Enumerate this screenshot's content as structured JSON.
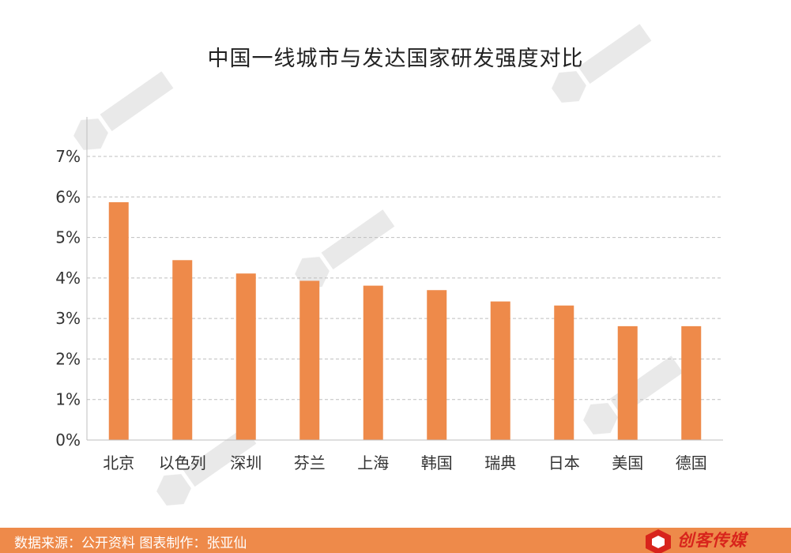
{
  "chart_data": {
    "type": "bar",
    "title": "中国一线城市与发达国家研发强度对比",
    "categories": [
      "北京",
      "以色列",
      "深圳",
      "芬兰",
      "上海",
      "韩国",
      "瑞典",
      "日本",
      "美国",
      "德国"
    ],
    "values": [
      5.87,
      4.44,
      4.11,
      3.93,
      3.81,
      3.7,
      3.42,
      3.32,
      2.81,
      2.81
    ],
    "yticks": [
      "0%",
      "1%",
      "2%",
      "3%",
      "4%",
      "5%",
      "6%",
      "7%"
    ],
    "ylim": [
      0,
      7
    ],
    "grid": true,
    "bar_color": "#ee8a4a"
  },
  "footer": {
    "source": "数据来源：公开资料  图表制作：张亚仙",
    "logo": "创客传媒"
  },
  "colors": {
    "footer_bg": "#ee8a4a",
    "logo_red": "#d8241c"
  }
}
